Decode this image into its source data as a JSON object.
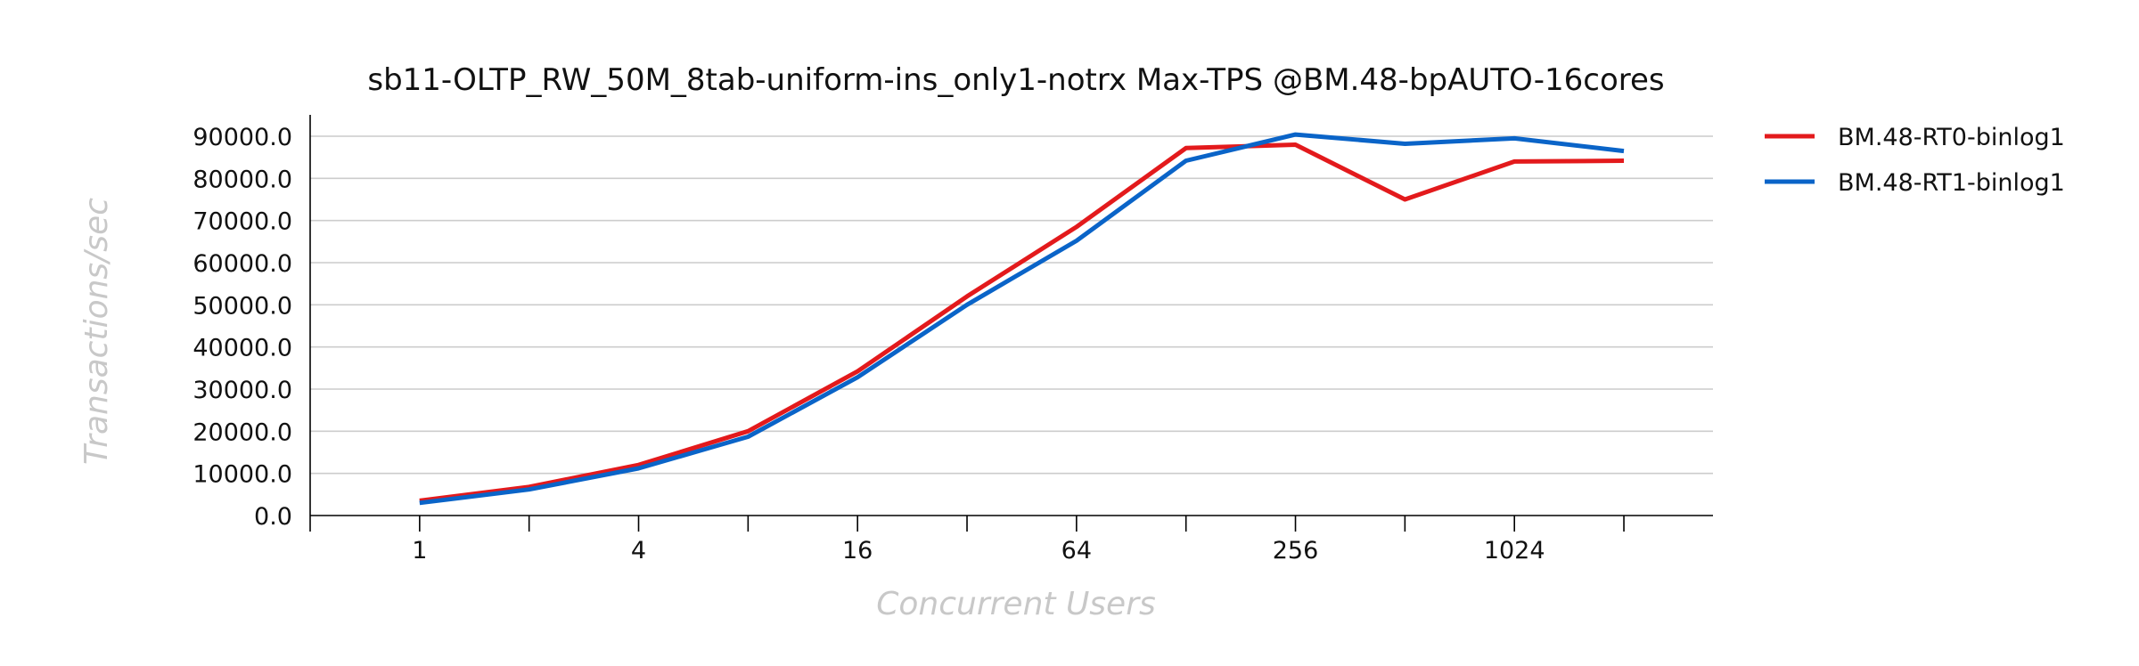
{
  "chart_data": {
    "type": "line",
    "title": "sb11-OLTP_RW_50M_8tab-uniform-ins_only1-notrx Max-TPS @BM.48-bpAUTO-16cores",
    "xlabel": "Concurrent Users",
    "ylabel": "Transactions/sec",
    "x": [
      1,
      2,
      4,
      8,
      16,
      32,
      64,
      128,
      256,
      512,
      1024,
      2048
    ],
    "x_scale": "log2",
    "x_tick_labels": [
      "1",
      "4",
      "16",
      "64",
      "256",
      "1024"
    ],
    "x_tick_label_values": [
      1,
      4,
      16,
      64,
      256,
      1024
    ],
    "x_minor_tick_values": [
      0.5,
      1,
      2,
      4,
      8,
      16,
      32,
      64,
      128,
      256,
      512,
      1024,
      2048
    ],
    "xlim": [
      0.5,
      3600
    ],
    "ylim": [
      0,
      90000
    ],
    "y_ticks": [
      0,
      10000,
      20000,
      30000,
      40000,
      50000,
      60000,
      70000,
      80000,
      90000
    ],
    "y_tick_labels": [
      "0.0",
      "10000.0",
      "20000.0",
      "30000.0",
      "40000.0",
      "50000.0",
      "60000.0",
      "70000.0",
      "80000.0",
      "90000.0"
    ],
    "grid": true,
    "legend_position": "top-right outside",
    "series": [
      {
        "name": "BM.48-RT0-binlog1",
        "color": "#e31a1c",
        "values": [
          3500,
          6800,
          12000,
          20000,
          34200,
          52000,
          68500,
          87200,
          88000,
          75000,
          84000,
          84200
        ]
      },
      {
        "name": "BM.48-RT1-binlog1",
        "color": "#0a64c8",
        "values": [
          3000,
          6200,
          11200,
          18700,
          32800,
          50000,
          65200,
          84200,
          90400,
          88200,
          89500,
          86500
        ]
      }
    ]
  }
}
